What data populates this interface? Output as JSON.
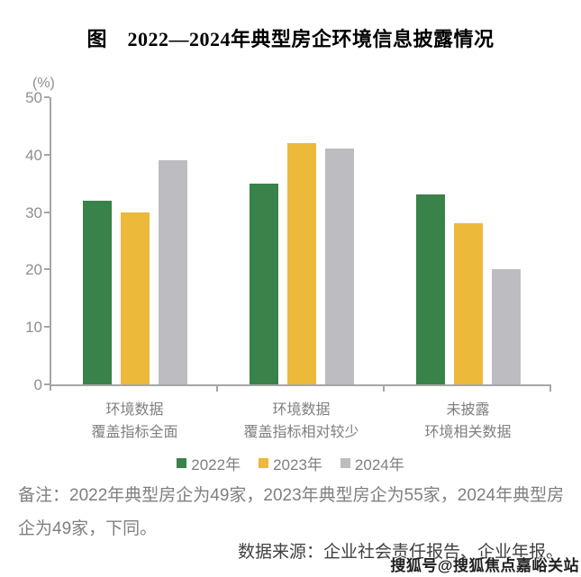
{
  "title": "图　2022—2024年典型房企环境信息披露情况",
  "chart_data": {
    "type": "bar",
    "title": "图　2022—2024年典型房企环境信息披露情况",
    "unit_label": "(%)",
    "categories": [
      "环境数据\n覆盖指标全面",
      "环境数据\n覆盖指标相对较少",
      "未披露\n环境相关数据"
    ],
    "series": [
      {
        "name": "2022年",
        "color": "#398249",
        "values": [
          32,
          35,
          33
        ]
      },
      {
        "name": "2023年",
        "color": "#EDB93B",
        "values": [
          30,
          42,
          28
        ]
      },
      {
        "name": "2024年",
        "color": "#BDBDC1",
        "values": [
          39,
          41,
          20
        ]
      }
    ],
    "ylim": [
      0,
      50
    ],
    "yticks": [
      0,
      10,
      20,
      30,
      40,
      50
    ],
    "grid": false,
    "legend_position": "bottom"
  },
  "notes": {
    "remark": "备注：2022年典型房企为49家，2023年典型房企为55家，2024年典型房企为49家，下同。",
    "source": "数据来源：企业社会责任报告、企业年报。",
    "watermark": "搜狐号@搜狐焦点嘉峪关站"
  },
  "colors": {
    "axis": "#a6a6a6",
    "tick_label": "#8f8f8f",
    "category_label": "#7f7f7f",
    "remark_text": "#7f7f7f",
    "source_text": "#404040",
    "series_2022": "#398249",
    "series_2023": "#EDB93B",
    "series_2024": "#BDBDC1"
  }
}
